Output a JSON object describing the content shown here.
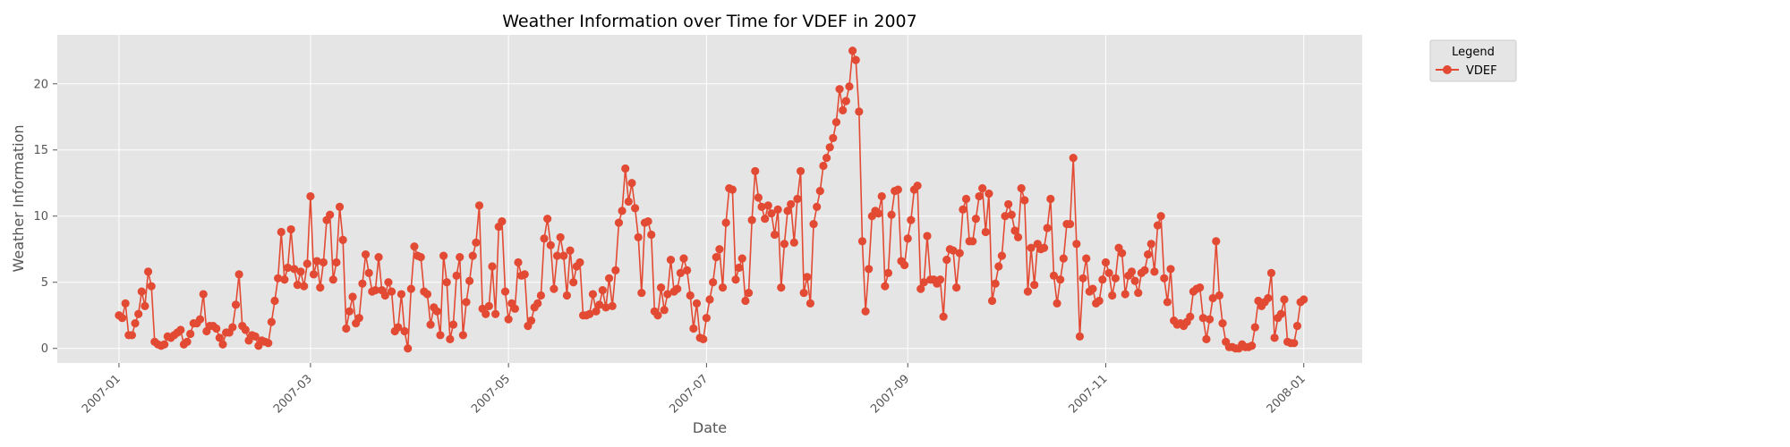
{
  "chart_data": {
    "type": "line",
    "title": "Weather Information over Time for VDEF in 2007",
    "xlabel": "Date",
    "ylabel": "Weather Information",
    "x_start": "2007-01-01",
    "x_end": "2007-12-30",
    "xlim": [
      "2006-12-13",
      "2008-01-19"
    ],
    "ylim": [
      -1.1,
      23.7
    ],
    "xticks": [
      "2007-01-01",
      "2007-03-01",
      "2007-05-01",
      "2007-07-01",
      "2007-09-01",
      "2007-11-01",
      "2008-01-01"
    ],
    "xtick_labels": [
      "2007-01",
      "2007-03",
      "2007-05",
      "2007-07",
      "2007-09",
      "2007-11",
      "2008-01"
    ],
    "yticks": [
      0,
      5,
      10,
      15,
      20
    ],
    "ytick_labels": [
      "0",
      "5",
      "10",
      "15",
      "20"
    ],
    "grid": true,
    "legend": {
      "title": "Legend",
      "placement": "outside-top-right"
    },
    "series": [
      {
        "name": "VDEF",
        "color": "#E24A33",
        "marker": "circle",
        "values": [
          2.5,
          2.3,
          3.4,
          1.0,
          1.0,
          1.9,
          2.6,
          4.3,
          3.2,
          5.8,
          4.7,
          0.5,
          0.3,
          0.2,
          0.3,
          0.9,
          0.8,
          1.0,
          1.2,
          1.4,
          0.3,
          0.5,
          1.1,
          1.9,
          1.9,
          2.2,
          4.1,
          1.3,
          1.7,
          1.7,
          1.5,
          0.8,
          0.3,
          1.2,
          1.2,
          1.6,
          3.3,
          5.6,
          1.7,
          1.4,
          0.6,
          1.0,
          0.9,
          0.2,
          0.6,
          0.5,
          0.4,
          2.0,
          3.6,
          5.3,
          8.8,
          5.2,
          6.1,
          9.0,
          6.0,
          4.8,
          5.8,
          4.7,
          6.4,
          11.5,
          5.6,
          6.6,
          4.6,
          6.5,
          9.7,
          10.1,
          5.2,
          6.5,
          10.7,
          8.2,
          1.5,
          2.8,
          3.9,
          1.9,
          2.3,
          4.9,
          7.1,
          5.7,
          4.3,
          4.4,
          6.9,
          4.4,
          4.0,
          5.0,
          4.3,
          1.3,
          1.6,
          4.1,
          1.3,
          0.0,
          4.5,
          7.7,
          7.0,
          6.9,
          4.3,
          4.1,
          1.8,
          3.1,
          2.8,
          1.0,
          7.0,
          5.0,
          0.7,
          1.8,
          5.5,
          6.9,
          1.0,
          3.5,
          5.1,
          7.0,
          8.0,
          10.8,
          3.0,
          2.6,
          3.2,
          6.2,
          2.6,
          9.2,
          9.6,
          4.3,
          2.2,
          3.4,
          3.0,
          6.5,
          5.5,
          5.6,
          1.7,
          2.1,
          3.1,
          3.4,
          4.0,
          8.3,
          9.8,
          7.8,
          4.5,
          7.0,
          8.4,
          7.0,
          4.0,
          7.4,
          5.0,
          6.2,
          6.5,
          2.5,
          2.5,
          2.6,
          4.1,
          2.8,
          3.3,
          4.4,
          3.1,
          5.3,
          3.2,
          5.9,
          9.5,
          10.4,
          13.6,
          11.1,
          12.5,
          10.6,
          8.4,
          4.2,
          9.5,
          9.6,
          8.6,
          2.8,
          2.5,
          4.6,
          2.9,
          4.1,
          6.7,
          4.3,
          4.5,
          5.7,
          6.8,
          5.9,
          4.0,
          1.5,
          3.4,
          0.8,
          0.7,
          2.3,
          3.7,
          5.0,
          6.9,
          7.5,
          4.6,
          9.5,
          12.1,
          12.0,
          5.2,
          6.1,
          6.8,
          3.6,
          4.2,
          9.7,
          13.4,
          11.4,
          10.7,
          9.8,
          10.8,
          10.2,
          8.6,
          10.5,
          4.6,
          7.9,
          10.4,
          10.9,
          8.0,
          11.3,
          13.4,
          4.2,
          5.4,
          3.4,
          9.4,
          10.7,
          11.9,
          13.8,
          14.4,
          15.2,
          15.9,
          17.1,
          19.6,
          18.0,
          18.7,
          19.8,
          22.5,
          21.8,
          17.9,
          8.1,
          2.8,
          6.0,
          10.0,
          10.4,
          10.2,
          11.5,
          4.7,
          5.7,
          10.1,
          11.9,
          12.0,
          6.6,
          6.3,
          8.3,
          9.7,
          12.0,
          12.3,
          4.5,
          5.0,
          8.5,
          5.2,
          5.2,
          4.9,
          5.2,
          2.4,
          6.7,
          7.5,
          7.4,
          4.6,
          7.2,
          10.5,
          11.3,
          8.1,
          8.1,
          9.8,
          11.5,
          12.1,
          8.8,
          11.7,
          3.6,
          4.9,
          6.2,
          7.0,
          10.0,
          10.9,
          10.1,
          8.9,
          8.4,
          12.1,
          11.2,
          4.3,
          7.6,
          4.8,
          7.9,
          7.5,
          7.6,
          9.1,
          11.3,
          5.5,
          3.4,
          5.2,
          6.8,
          9.4,
          9.4,
          14.4,
          7.9,
          0.9,
          5.3,
          6.8,
          4.3,
          4.5,
          3.4,
          3.6,
          5.2,
          6.5,
          5.7,
          4.0,
          5.3,
          7.6,
          7.2,
          4.1,
          5.5,
          5.8,
          5.1,
          4.2,
          5.7,
          5.9,
          7.1,
          7.9,
          5.8,
          9.3,
          10.0,
          5.3,
          3.5,
          6.0,
          2.1,
          1.8,
          1.9,
          1.7,
          2.0,
          2.4,
          4.3,
          4.5,
          4.6,
          2.3,
          0.7,
          2.2,
          3.8,
          8.1,
          4.0,
          1.9,
          0.5,
          0.1,
          0.1,
          0.0,
          0.0,
          0.3,
          0.1,
          0.1,
          0.2,
          1.6,
          3.6,
          3.2,
          3.5,
          3.8,
          5.7,
          0.8,
          2.3,
          2.6,
          3.7,
          0.5,
          0.4,
          0.4,
          1.7,
          3.5,
          3.7
        ]
      }
    ]
  }
}
